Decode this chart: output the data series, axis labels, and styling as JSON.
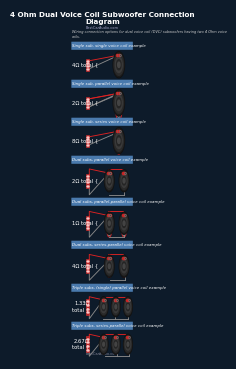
{
  "title": "4 Ohm Dual Voice Coil Subwoofer Connection\nDiagram",
  "website": "BestCarAudio.com",
  "subtitle": "Wiring connection options for dual voice coil (DVC) subwoofers having two 4 Ohm voice\ncoils.",
  "bg_color": "#0d1b2a",
  "title_color": "#ffffff",
  "label_bg_color": "#4a7aad",
  "label_text_color": "#ffffff",
  "ohm_color": "#ffffff",
  "wire_red": "#dd2222",
  "wire_black": "#888888",
  "wire_dark": "#333333",
  "sections": [
    {
      "label": "Single sub, single voice coil example",
      "ohm": "4Ω total {",
      "n_subs": 1,
      "config": "single"
    },
    {
      "label": "Single sub, parallel voice coil example",
      "ohm": "2Ω total {",
      "n_subs": 1,
      "config": "parallel"
    },
    {
      "label": "Single sub, series voice coil example",
      "ohm": "8Ω total {",
      "n_subs": 1,
      "config": "series"
    },
    {
      "label": "Dual subs, parallel voice coil example",
      "ohm": "2Ω total {",
      "n_subs": 2,
      "config": "parallel"
    },
    {
      "label": "Dual subs, parallel-parallel voice coil example",
      "ohm": "1Ω total {",
      "n_subs": 2,
      "config": "parallel_parallel"
    },
    {
      "label": "Dual subs, series-parallel voice coil example",
      "ohm": "4Ω total {",
      "n_subs": 2,
      "config": "series_parallel"
    },
    {
      "label": "Triple subs, (single) parallel voice coil example",
      "ohm": "1.33Ω\ntotal {",
      "n_subs": 3,
      "config": "parallel"
    },
    {
      "label": "Triple subs, series-parallel voice coil example",
      "ohm": "2.67Ω\ntotal {",
      "n_subs": 3,
      "config": "series_parallel"
    }
  ]
}
